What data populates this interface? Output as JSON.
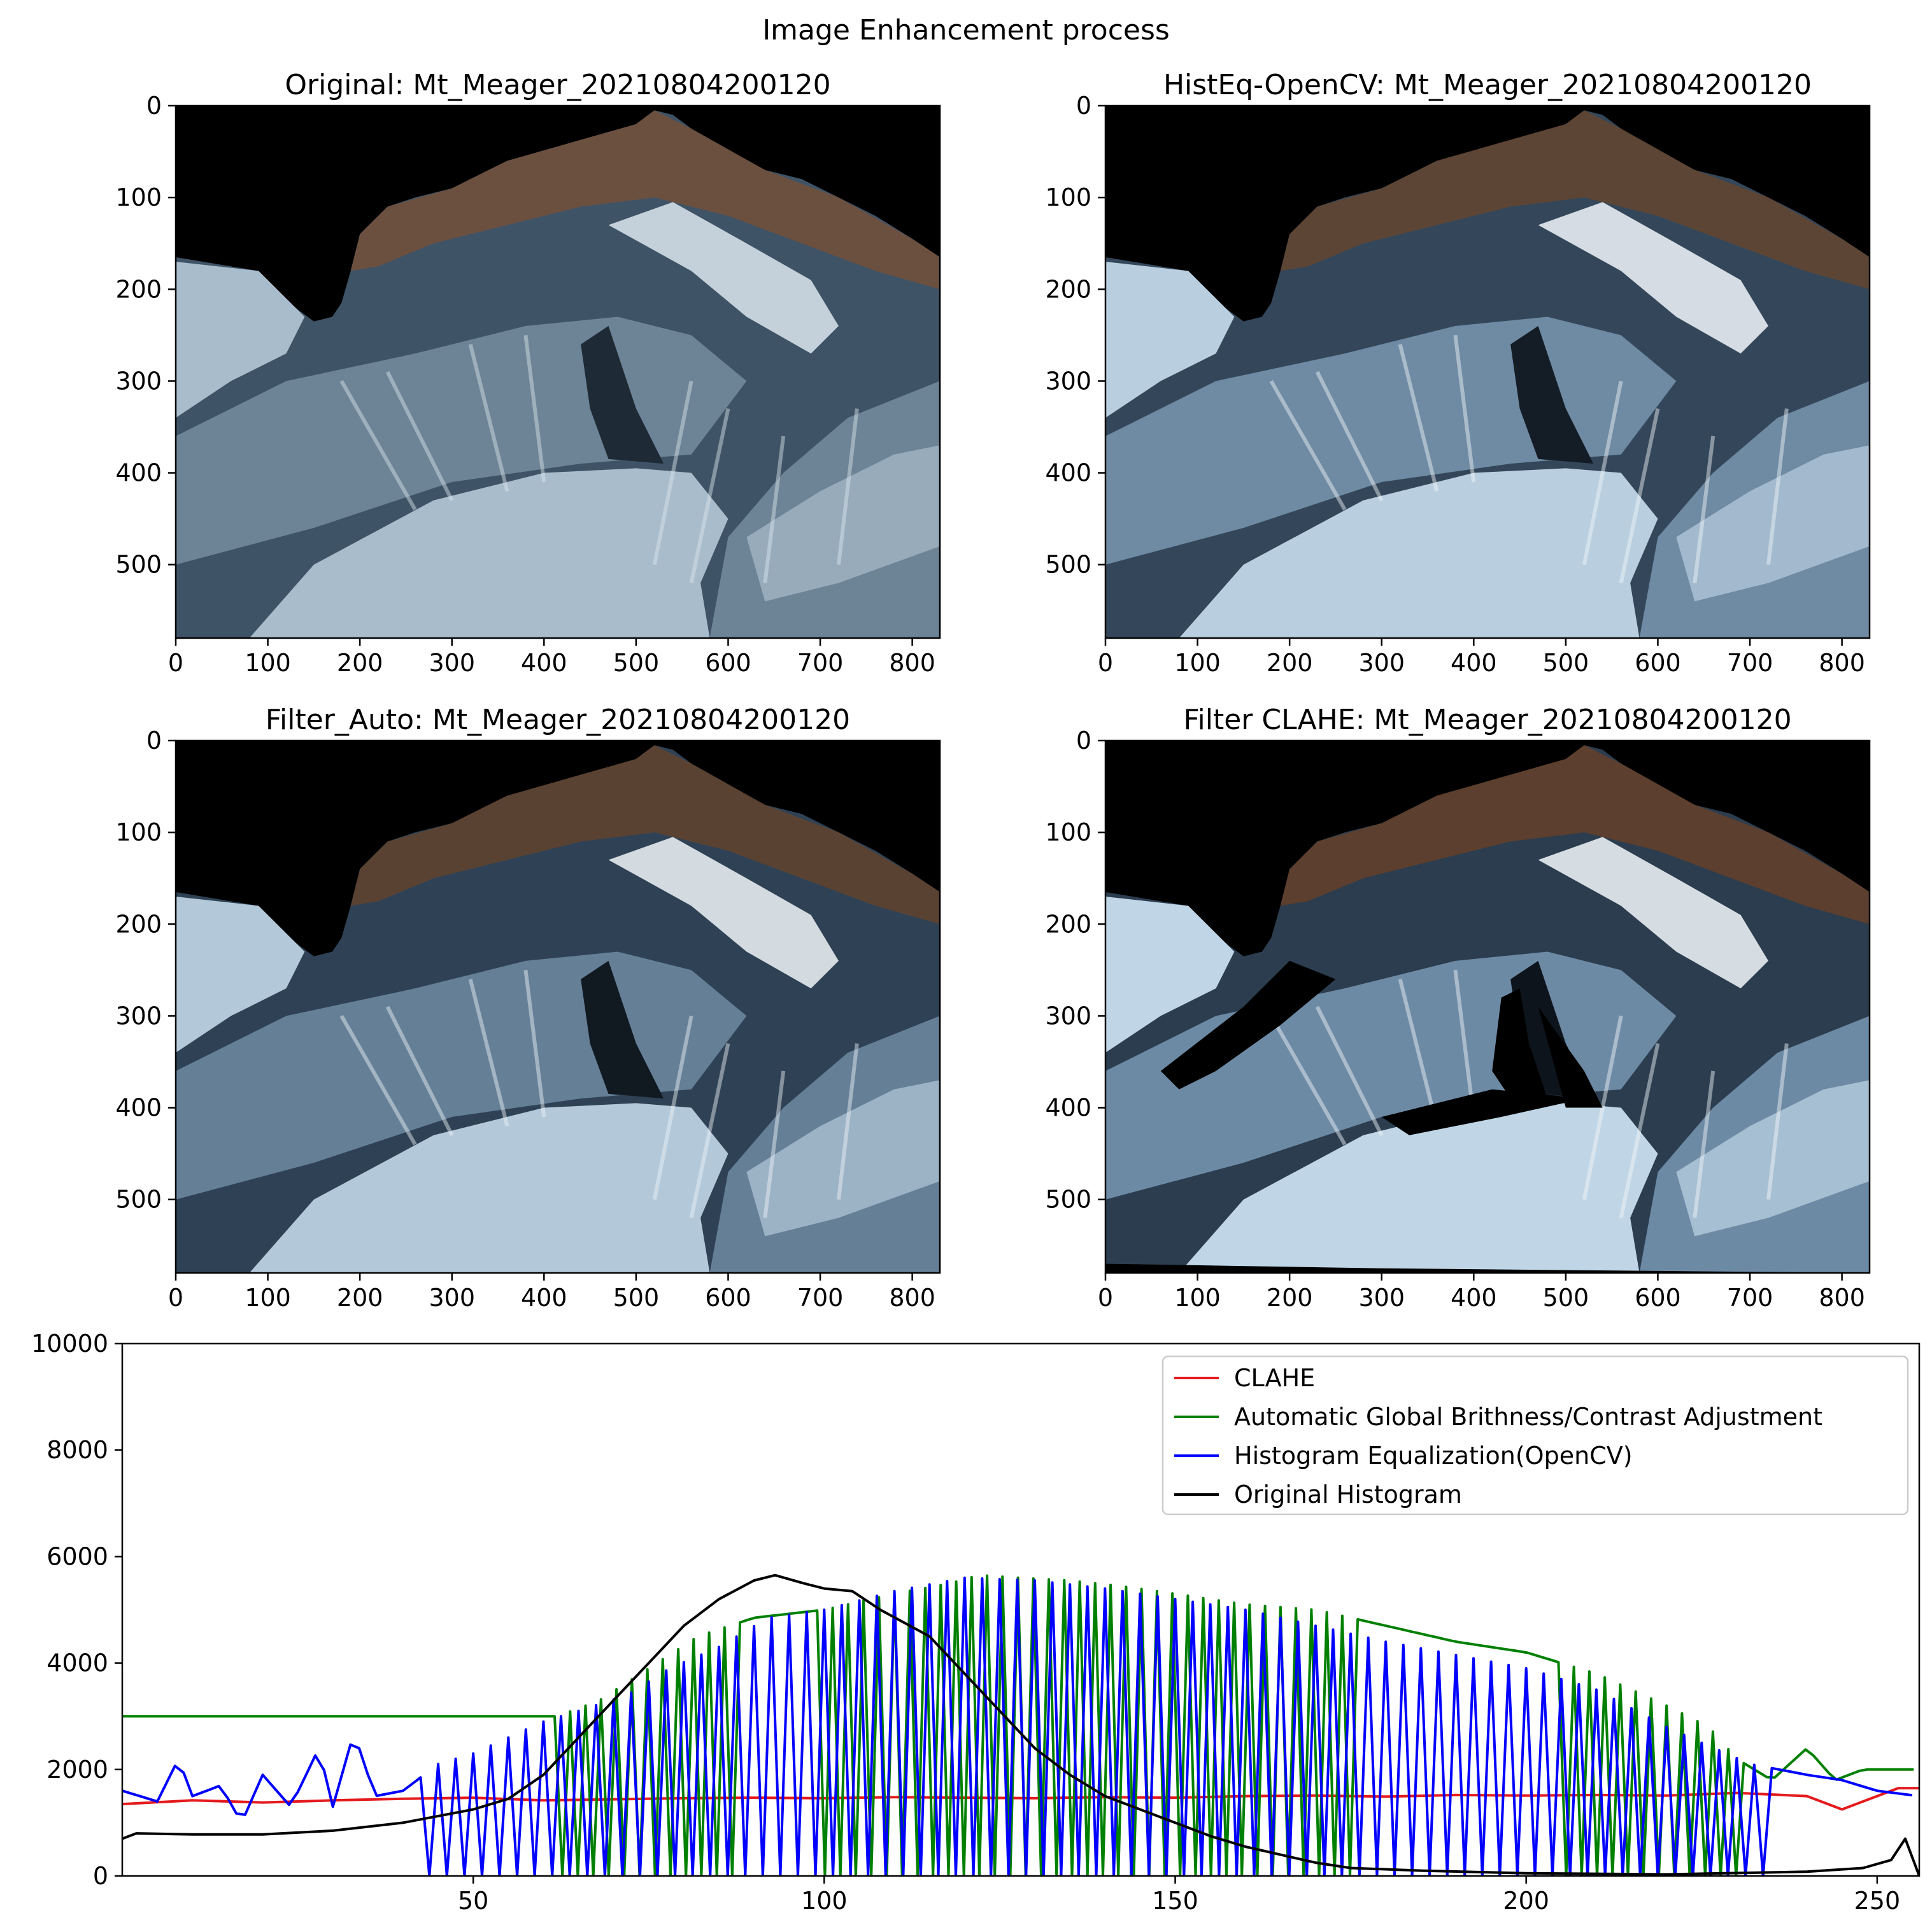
{
  "figure": {
    "title": "Image Enhancement process"
  },
  "panels": [
    {
      "id": "original",
      "title": "Original: Mt_Meager_20210804200120",
      "variant": "original",
      "xticks": [
        "0",
        "100",
        "200",
        "300",
        "400",
        "500",
        "600",
        "700",
        "800"
      ],
      "yticks": [
        "0",
        "100",
        "200",
        "300",
        "400",
        "500"
      ]
    },
    {
      "id": "histeq",
      "title": "HistEq-OpenCV: Mt_Meager_20210804200120",
      "variant": "histeq",
      "xticks": [
        "0",
        "100",
        "200",
        "300",
        "400",
        "500",
        "600",
        "700",
        "800"
      ],
      "yticks": [
        "0",
        "100",
        "200",
        "300",
        "400",
        "500"
      ]
    },
    {
      "id": "auto",
      "title": "Filter_Auto: Mt_Meager_20210804200120",
      "variant": "auto",
      "xticks": [
        "0",
        "100",
        "200",
        "300",
        "400",
        "500",
        "600",
        "700",
        "800"
      ],
      "yticks": [
        "0",
        "100",
        "200",
        "300",
        "400",
        "500"
      ]
    },
    {
      "id": "clahe",
      "title": "Filter CLAHE: Mt_Meager_20210804200120",
      "variant": "clahe",
      "xticks": [
        "0",
        "100",
        "200",
        "300",
        "400",
        "500",
        "600",
        "700",
        "800"
      ],
      "yticks": [
        "0",
        "100",
        "200",
        "300",
        "400",
        "500"
      ]
    }
  ],
  "chart_data": {
    "type": "line",
    "title": "",
    "xlabel": "",
    "ylabel": "",
    "xlim": [
      0,
      256
    ],
    "ylim": [
      0,
      10000
    ],
    "xticks": [
      50,
      100,
      150,
      200,
      250
    ],
    "yticks": [
      0,
      2000,
      4000,
      6000,
      8000,
      10000
    ],
    "legend_position": "top-right",
    "series": [
      {
        "name": "CLAHE",
        "color": "#e41a1c",
        "points": [
          [
            0,
            1350
          ],
          [
            10,
            1420
          ],
          [
            20,
            1380
          ],
          [
            30,
            1420
          ],
          [
            40,
            1450
          ],
          [
            50,
            1470
          ],
          [
            60,
            1420
          ],
          [
            70,
            1440
          ],
          [
            80,
            1460
          ],
          [
            90,
            1470
          ],
          [
            100,
            1460
          ],
          [
            110,
            1480
          ],
          [
            120,
            1470
          ],
          [
            130,
            1460
          ],
          [
            140,
            1480
          ],
          [
            150,
            1470
          ],
          [
            160,
            1500
          ],
          [
            170,
            1510
          ],
          [
            180,
            1490
          ],
          [
            190,
            1520
          ],
          [
            200,
            1510
          ],
          [
            210,
            1520
          ],
          [
            220,
            1510
          ],
          [
            230,
            1560
          ],
          [
            240,
            1500
          ],
          [
            245,
            1250
          ],
          [
            250,
            1500
          ],
          [
            253,
            1650
          ],
          [
            256,
            1650
          ]
        ]
      },
      {
        "name": "Automatic Global Brithness/Contrast Adjustment",
        "color": "#008000",
        "osc": true,
        "envelope": [
          [
            62,
            3000
          ],
          [
            68,
            3300
          ],
          [
            75,
            3900
          ],
          [
            82,
            4500
          ],
          [
            90,
            4850
          ],
          [
            100,
            5000
          ],
          [
            110,
            5300
          ],
          [
            118,
            5500
          ],
          [
            122,
            5650
          ],
          [
            128,
            5600
          ],
          [
            135,
            5550
          ],
          [
            142,
            5450
          ],
          [
            150,
            5300
          ],
          [
            160,
            5100
          ],
          [
            170,
            5000
          ],
          [
            180,
            4700
          ],
          [
            190,
            4400
          ],
          [
            200,
            4200
          ],
          [
            210,
            3800
          ],
          [
            220,
            3200
          ],
          [
            226,
            2800
          ],
          [
            230,
            2200
          ],
          [
            235,
            1800
          ],
          [
            240,
            2400
          ],
          [
            244,
            1800
          ],
          [
            248,
            2000
          ]
        ],
        "min": 0,
        "ranges": [
          [
            62,
            87
          ],
          [
            98,
            176
          ],
          [
            205,
            232
          ]
        ],
        "period": 2.2
      },
      {
        "name": "Histogram Equalization(OpenCV)",
        "color": "#0000ff",
        "osc": true,
        "envelope": [
          [
            0,
            1600
          ],
          [
            5,
            1400
          ],
          [
            8,
            2200
          ],
          [
            10,
            1500
          ],
          [
            14,
            1700
          ],
          [
            17,
            1000
          ],
          [
            20,
            1900
          ],
          [
            24,
            1300
          ],
          [
            28,
            2400
          ],
          [
            30,
            1300
          ],
          [
            33,
            2700
          ],
          [
            36,
            1500
          ],
          [
            40,
            1600
          ],
          [
            42,
            1800
          ],
          [
            45,
            2100
          ],
          [
            50,
            2300
          ],
          [
            55,
            2600
          ],
          [
            60,
            2900
          ],
          [
            65,
            3100
          ],
          [
            72,
            3400
          ],
          [
            78,
            3900
          ],
          [
            85,
            4300
          ],
          [
            92,
            4850
          ],
          [
            100,
            5000
          ],
          [
            110,
            5350
          ],
          [
            120,
            5600
          ],
          [
            130,
            5550
          ],
          [
            140,
            5400
          ],
          [
            150,
            5200
          ],
          [
            160,
            5000
          ],
          [
            170,
            4700
          ],
          [
            180,
            4400
          ],
          [
            190,
            4150
          ],
          [
            200,
            3900
          ],
          [
            210,
            3500
          ],
          [
            220,
            2800
          ],
          [
            225,
            2500
          ],
          [
            232,
            2100
          ],
          [
            240,
            1900
          ],
          [
            245,
            1800
          ],
          [
            250,
            1600
          ],
          [
            256,
            1500
          ]
        ],
        "min": 0,
        "ranges": [
          [
            42,
            234
          ]
        ],
        "period": 2.5
      },
      {
        "name": "Original Histogram",
        "color": "#000000",
        "points": [
          [
            0,
            700
          ],
          [
            2,
            800
          ],
          [
            10,
            780
          ],
          [
            20,
            780
          ],
          [
            30,
            850
          ],
          [
            40,
            1000
          ],
          [
            50,
            1250
          ],
          [
            55,
            1450
          ],
          [
            60,
            1900
          ],
          [
            65,
            2600
          ],
          [
            70,
            3300
          ],
          [
            75,
            4000
          ],
          [
            80,
            4700
          ],
          [
            85,
            5200
          ],
          [
            90,
            5550
          ],
          [
            93,
            5650
          ],
          [
            97,
            5500
          ],
          [
            100,
            5400
          ],
          [
            104,
            5350
          ],
          [
            108,
            5000
          ],
          [
            115,
            4500
          ],
          [
            120,
            3800
          ],
          [
            125,
            3100
          ],
          [
            130,
            2400
          ],
          [
            135,
            1900
          ],
          [
            140,
            1500
          ],
          [
            145,
            1250
          ],
          [
            150,
            1000
          ],
          [
            155,
            750
          ],
          [
            160,
            550
          ],
          [
            165,
            400
          ],
          [
            170,
            250
          ],
          [
            175,
            150
          ],
          [
            185,
            100
          ],
          [
            200,
            50
          ],
          [
            220,
            30
          ],
          [
            240,
            80
          ],
          [
            248,
            150
          ],
          [
            252,
            300
          ],
          [
            254,
            700
          ],
          [
            256,
            0
          ]
        ]
      }
    ]
  }
}
